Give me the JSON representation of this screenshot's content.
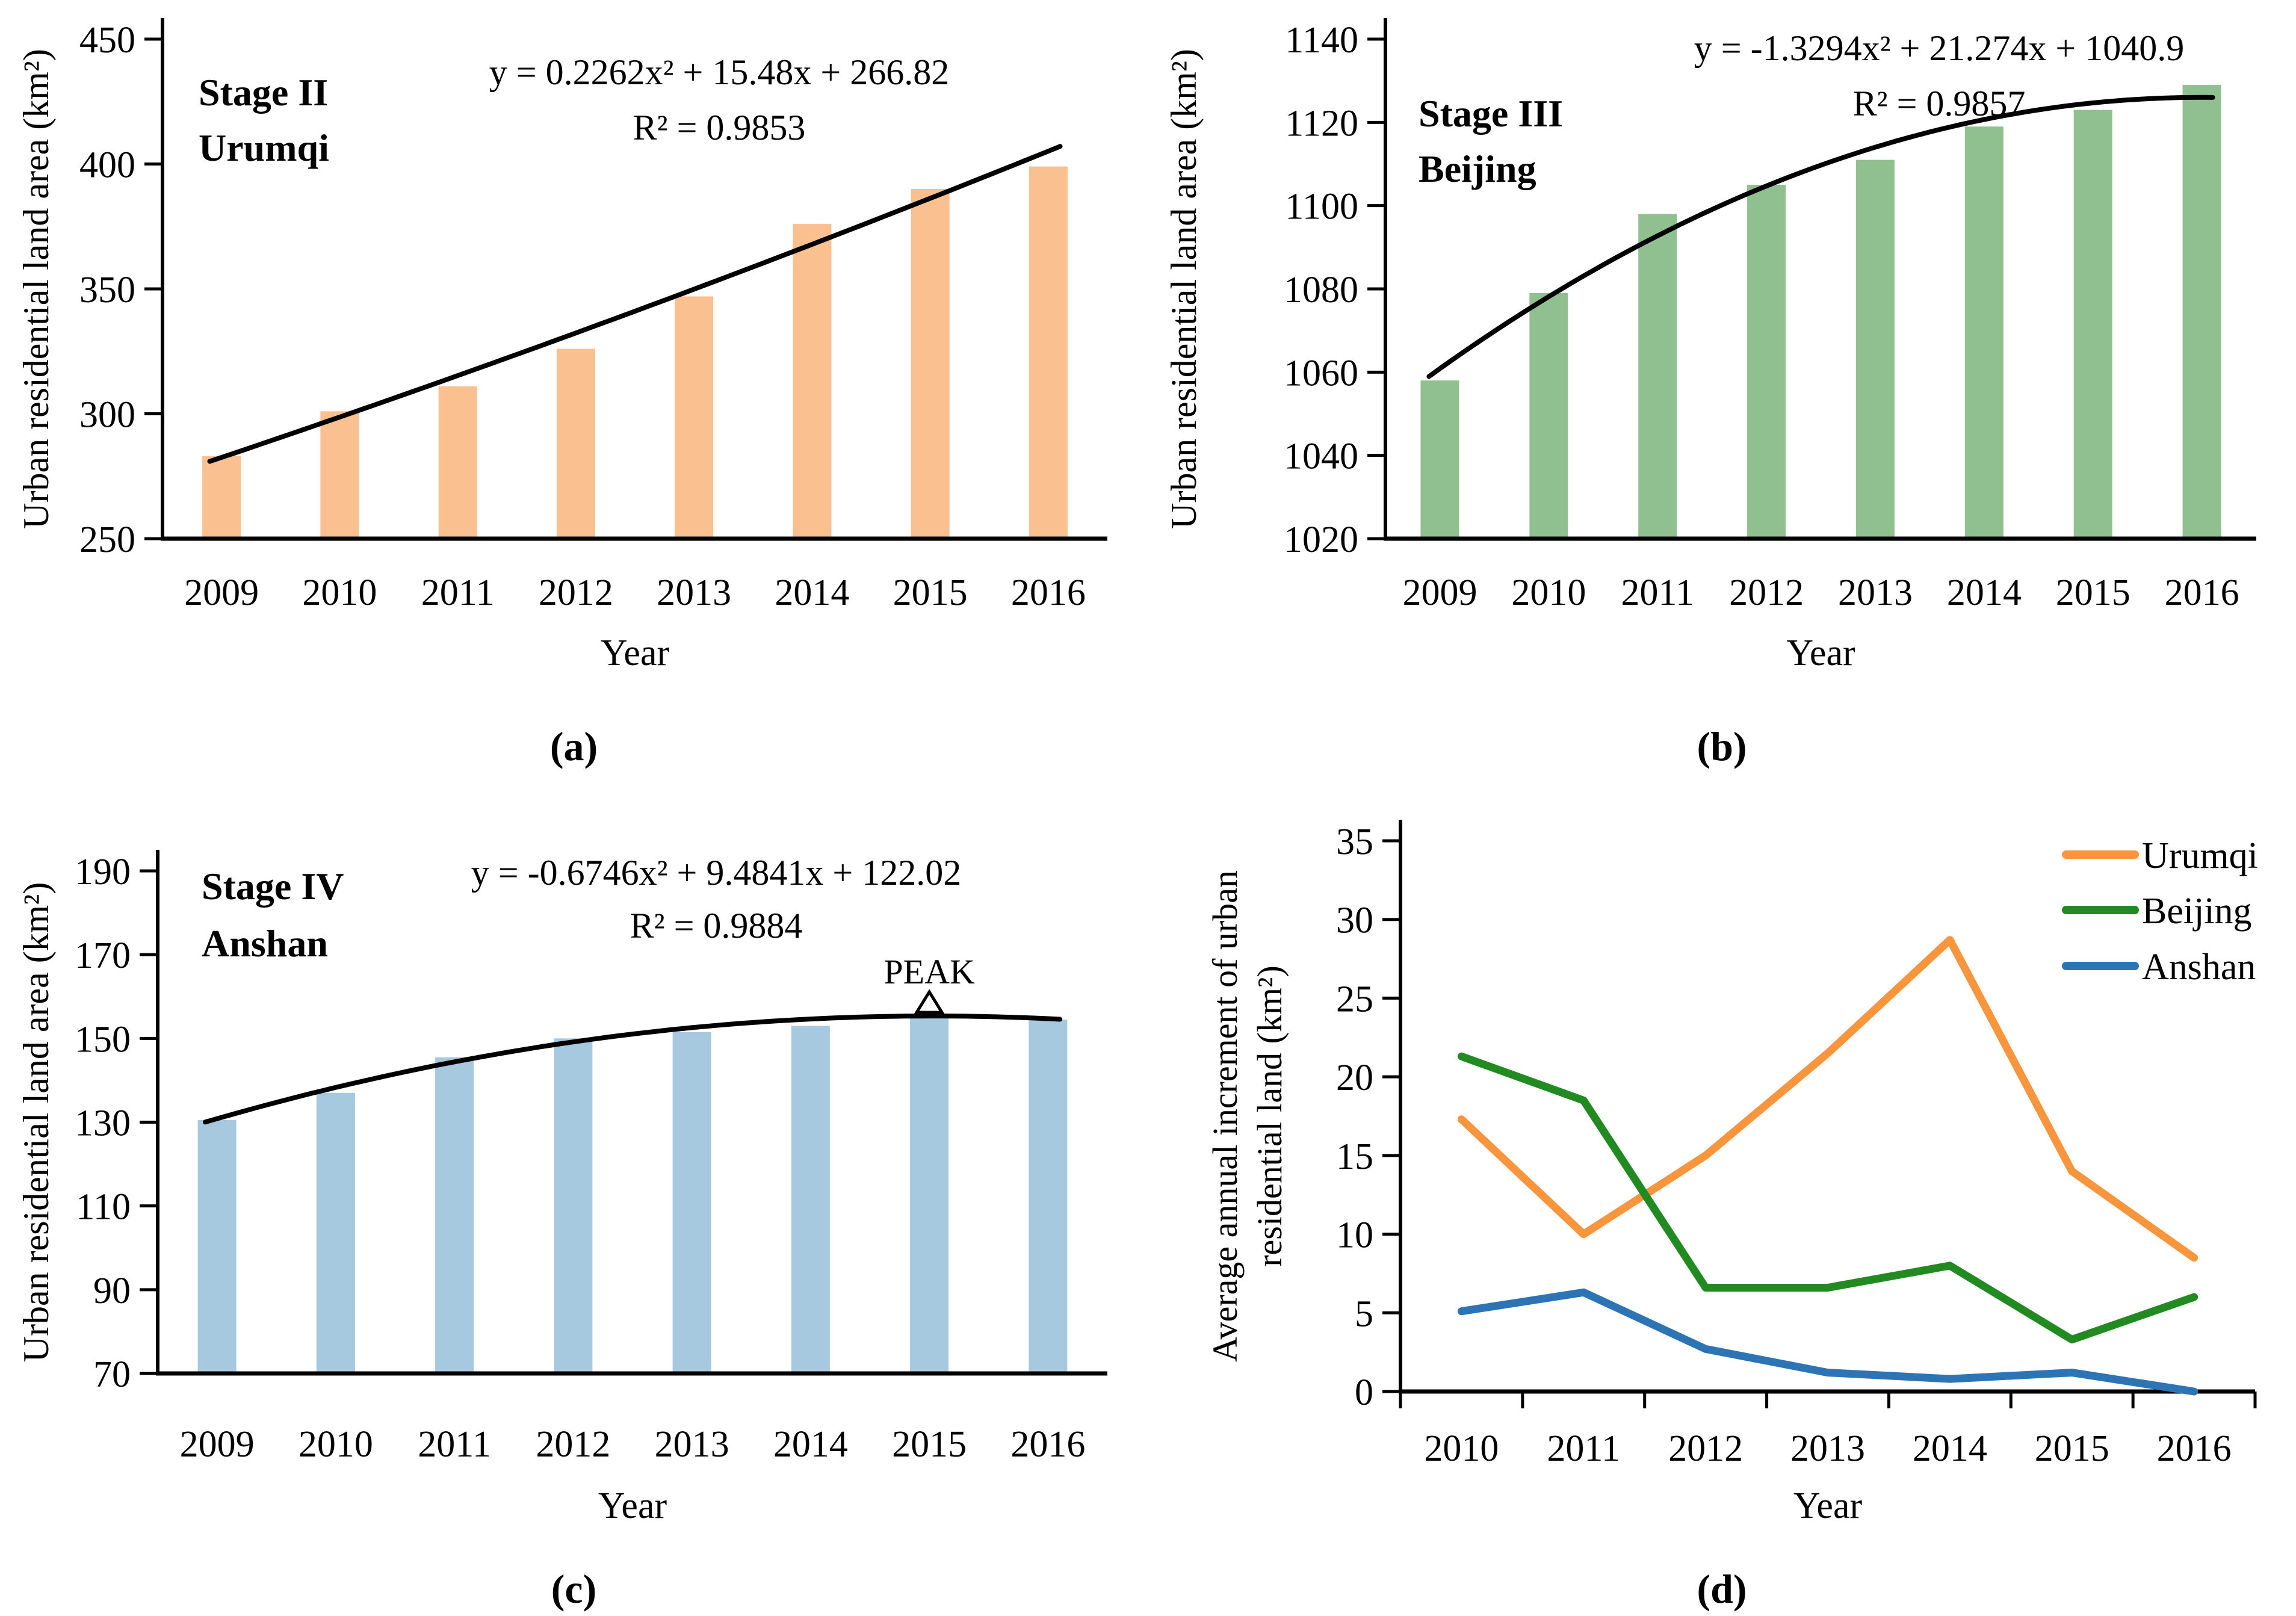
{
  "chart_data": [
    {
      "id": "a",
      "type": "bar",
      "panel_caption": "(a)",
      "stage_label": "Stage II",
      "city_label": "Urumqi",
      "equation": "y = 0.2262x² + 15.48x + 266.82",
      "r_squared": "R² = 0.9853",
      "fit_coefficients": {
        "a": 0.2262,
        "b": 15.48,
        "c": 266.82
      },
      "categories": [
        "2009",
        "2010",
        "2011",
        "2012",
        "2013",
        "2014",
        "2015",
        "2016"
      ],
      "values": [
        283,
        301,
        311,
        326,
        347,
        376,
        390,
        399
      ],
      "xlabel": "Year",
      "ylabel": "Urban residential land area (km²)",
      "ylim": [
        250,
        450
      ],
      "ytick_step": 50,
      "bar_color": "#FAC090",
      "fit_line_color": "#000000",
      "grid": "off"
    },
    {
      "id": "b",
      "type": "bar",
      "panel_caption": "(b)",
      "stage_label": "Stage III",
      "city_label": "Beijing",
      "equation": "y = -1.3294x² + 21.274x + 1040.9",
      "r_squared": "R² = 0.9857",
      "fit_coefficients": {
        "a": -1.3294,
        "b": 21.274,
        "c": 1040.9
      },
      "categories": [
        "2009",
        "2010",
        "2011",
        "2012",
        "2013",
        "2014",
        "2015",
        "2016"
      ],
      "values": [
        1058,
        1079,
        1098,
        1105,
        1111,
        1119,
        1123,
        1129
      ],
      "xlabel": "Year",
      "ylabel": "Urban residential land area (km²)",
      "ylim": [
        1020,
        1140
      ],
      "ytick_step": 20,
      "bar_color": "#90C08F",
      "fit_line_color": "#000000",
      "grid": "off"
    },
    {
      "id": "c",
      "type": "bar",
      "panel_caption": "(c)",
      "stage_label": "Stage IV",
      "city_label": "Anshan",
      "equation": "y = -0.6746x² + 9.4841x + 122.02",
      "r_squared": "R² = 0.9884",
      "fit_coefficients": {
        "a": -0.6746,
        "b": 9.4841,
        "c": 122.02
      },
      "categories": [
        "2009",
        "2010",
        "2011",
        "2012",
        "2013",
        "2014",
        "2015",
        "2016"
      ],
      "values": [
        130.5,
        137,
        145.5,
        150,
        151.5,
        153,
        155,
        154.5
      ],
      "peak_annotation": {
        "label": "PEAK",
        "category": "2015"
      },
      "xlabel": "Year",
      "ylabel": "Urban residential land area (km²)",
      "ylim": [
        70,
        190
      ],
      "ytick_step": 20,
      "bar_color": "#A6C9E0",
      "fit_line_color": "#000000",
      "grid": "off"
    },
    {
      "id": "d",
      "type": "line",
      "panel_caption": "(d)",
      "categories": [
        "2010",
        "2011",
        "2012",
        "2013",
        "2014",
        "2015",
        "2016"
      ],
      "series": [
        {
          "name": "Urumqi",
          "color": "#F8953D",
          "values": [
            17.3,
            10,
            15,
            21.5,
            28.7,
            14,
            8.5
          ]
        },
        {
          "name": "Beijing",
          "color": "#218A21",
          "values": [
            21.3,
            18.5,
            6.6,
            6.6,
            8,
            3.3,
            6
          ]
        },
        {
          "name": "Anshan",
          "color": "#2D74B5",
          "values": [
            5.1,
            6.3,
            2.7,
            1.2,
            0.8,
            1.2,
            0
          ]
        }
      ],
      "xlabel": "Year",
      "ylabel_lines": [
        "Average annual increment of urban",
        "residential land (km²)"
      ],
      "ylim": [
        0,
        35
      ],
      "ytick_step": 5,
      "legend_position": "top-right",
      "grid": "off"
    }
  ]
}
